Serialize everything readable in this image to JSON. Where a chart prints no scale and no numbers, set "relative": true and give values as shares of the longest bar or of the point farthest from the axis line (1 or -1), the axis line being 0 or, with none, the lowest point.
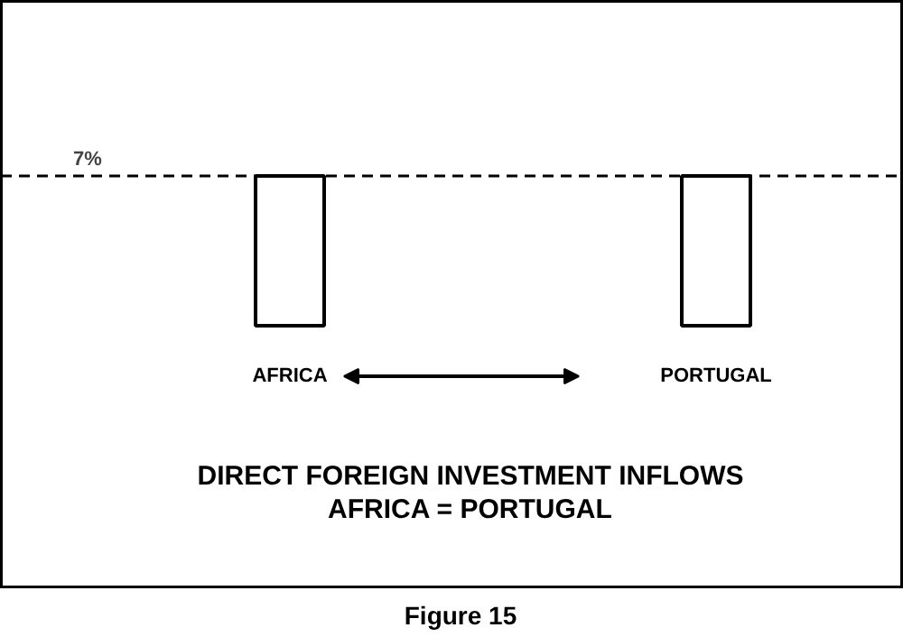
{
  "chart_data": {
    "type": "bar",
    "title": "DIRECT FOREIGN INVESTMENT INFLOWS\nAFRICA = PORTUGAL",
    "categories": [
      "AFRICA",
      "PORTUGAL"
    ],
    "values": [
      1,
      1
    ],
    "color": "#ffffff",
    "relative": true,
    "ref_lines": [
      {
        "axis": "y",
        "value": 1,
        "line_style": "dashed",
        "color": "#000000"
      }
    ],
    "annotations": [
      "7%",
      "Figure 15"
    ],
    "grid": false
  }
}
